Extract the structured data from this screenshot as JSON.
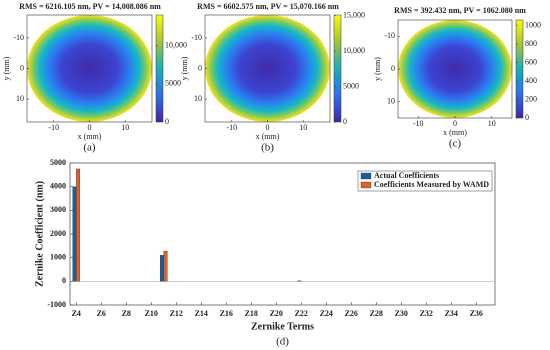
{
  "chart_data": [
    {
      "type": "heatmap",
      "title": "RMS = 6216.105 nm, PV = 14,008.086 nm",
      "xlabel": "x (mm)",
      "ylabel": "y (mm)",
      "xlim": [
        -17.5,
        17.5
      ],
      "ylim": [
        17.5,
        -17.5
      ],
      "xticks": [
        -10,
        0,
        10
      ],
      "yticks": [
        -10,
        0,
        10
      ],
      "clim": [
        0,
        14008.086
      ],
      "cticks": [
        0,
        5000,
        {
          "value": 10000,
          "label": "10,000"
        }
      ],
      "colormap": "parula",
      "caption": "(a)"
    },
    {
      "type": "heatmap",
      "title": "RMS = 6602.575 nm, PV = 15,070.166 nm",
      "xlabel": "x (mm)",
      "ylabel": "y (mm)",
      "xlim": [
        -17.5,
        17.5
      ],
      "ylim": [
        17.5,
        -17.5
      ],
      "xticks": [
        -10,
        0,
        10
      ],
      "yticks": [
        -10,
        0,
        10
      ],
      "clim": [
        0,
        15070.166
      ],
      "cticks": [
        0,
        5000,
        {
          "value": 10000,
          "label": "10,000"
        },
        {
          "value": 15000,
          "label": "15,000"
        }
      ],
      "colormap": "parula",
      "caption": "(b)"
    },
    {
      "type": "heatmap",
      "title": "RMS = 392.432 nm, PV = 1062.080 nm",
      "xlabel": "x (mm)",
      "ylabel": "y (mm)",
      "xlim": [
        -15.5,
        15.5
      ],
      "ylim": [
        15,
        -15
      ],
      "xticks": [
        -10,
        0,
        10
      ],
      "yticks": [
        -10,
        0,
        10
      ],
      "clim": [
        0,
        1062.08
      ],
      "cticks": [
        0,
        200,
        400,
        600,
        800,
        1000
      ],
      "colormap": "parula",
      "caption": "(c)"
    },
    {
      "type": "bar",
      "xlabel": "Zernike Terms",
      "ylabel": "Zernike Coefficient (nm)",
      "caption": "(d)",
      "categories": [
        "Z4",
        null,
        "Z6",
        null,
        "Z8",
        null,
        "Z10",
        null,
        "Z12",
        null,
        "Z14",
        null,
        "Z16",
        null,
        "Z18",
        null,
        "Z20",
        null,
        "Z22",
        null,
        "Z24",
        null,
        "Z26",
        null,
        "Z28",
        null,
        "Z30",
        null,
        "Z32",
        null,
        "Z34",
        null,
        "Z36",
        null
      ],
      "series": [
        {
          "name": "Actual Coefficients",
          "color": "#1c5d99",
          "values": [
            4000,
            0,
            0,
            0,
            0,
            0,
            0,
            1100,
            0,
            0,
            0,
            0,
            0,
            0,
            0,
            0,
            0,
            0,
            20,
            0,
            0,
            0,
            0,
            0,
            0,
            0,
            0,
            0,
            0,
            0,
            0,
            0,
            0,
            0
          ]
        },
        {
          "name": "Coefficients Measured by WAMD",
          "color": "#e0602a",
          "values": [
            4750,
            0,
            0,
            0,
            0,
            0,
            0,
            1280,
            0,
            0,
            0,
            0,
            0,
            0,
            0,
            0,
            0,
            0,
            0,
            0,
            0,
            0,
            0,
            0,
            0,
            0,
            0,
            0,
            0,
            0,
            0,
            0,
            0,
            0
          ]
        }
      ],
      "ylim": [
        -1000,
        5000
      ],
      "yticks": [
        -1000,
        0,
        1000,
        2000,
        3000,
        4000,
        5000
      ],
      "legend": "upper-right"
    }
  ]
}
